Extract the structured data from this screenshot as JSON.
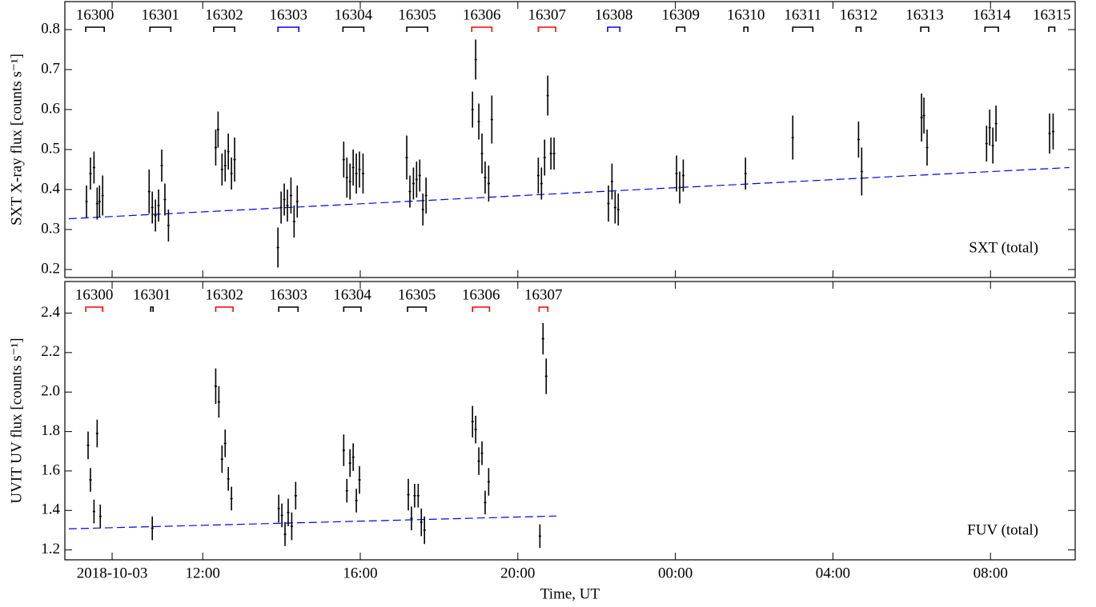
{
  "chart_data": [
    {
      "type": "scatter",
      "ylabel": "SXT X-ray flux [counts s⁻¹]",
      "annotation": "SXT (total)",
      "xlim": [
        8.5,
        34.15
      ],
      "xticks": [
        9.7,
        12,
        16,
        20,
        24,
        28,
        32
      ],
      "ylim": [
        0.18,
        0.87
      ],
      "yticks": [
        0.2,
        0.3,
        0.4,
        0.5,
        0.6,
        0.7,
        0.8
      ],
      "color": "#000000",
      "x": [
        9.05,
        9.15,
        9.24,
        9.32,
        9.38,
        9.46,
        10.64,
        10.72,
        10.8,
        10.88,
        10.96,
        11.04,
        11.13,
        12.33,
        12.39,
        12.49,
        12.57,
        12.65,
        12.73,
        12.81,
        13.91,
        13.99,
        14.07,
        14.15,
        14.24,
        14.32,
        14.4,
        15.58,
        15.66,
        15.74,
        15.82,
        15.9,
        15.98,
        16.07,
        17.18,
        17.26,
        17.35,
        17.43,
        17.51,
        17.59,
        17.67,
        18.85,
        18.93,
        19.01,
        19.09,
        19.17,
        19.26,
        19.34,
        20.52,
        20.6,
        20.68,
        20.76,
        20.84,
        20.92,
        22.3,
        22.39,
        22.47,
        22.55,
        24.03,
        24.11,
        24.2,
        25.78,
        26.98,
        28.65,
        28.73,
        30.25,
        30.31,
        30.39,
        31.9,
        31.98,
        32.06,
        32.14,
        33.5,
        33.59
      ],
      "values": [
        0.37,
        0.44,
        0.455,
        0.365,
        0.37,
        0.385,
        0.395,
        0.355,
        0.335,
        0.36,
        0.46,
        0.375,
        0.31,
        0.505,
        0.55,
        0.45,
        0.46,
        0.495,
        0.44,
        0.475,
        0.255,
        0.355,
        0.375,
        0.36,
        0.385,
        0.32,
        0.37,
        0.475,
        0.43,
        0.42,
        0.455,
        0.44,
        0.45,
        0.44,
        0.48,
        0.395,
        0.415,
        0.425,
        0.435,
        0.35,
        0.385,
        0.6,
        0.725,
        0.57,
        0.49,
        0.43,
        0.415,
        0.575,
        0.435,
        0.415,
        0.48,
        0.635,
        0.49,
        0.49,
        0.365,
        0.42,
        0.355,
        0.35,
        0.44,
        0.405,
        0.435,
        0.44,
        0.53,
        0.525,
        0.445,
        0.58,
        0.585,
        0.505,
        0.515,
        0.555,
        0.51,
        0.565,
        0.54,
        0.545
      ],
      "errors": [
        0.04,
        0.04,
        0.04,
        0.04,
        0.04,
        0.05,
        0.055,
        0.04,
        0.04,
        0.04,
        0.04,
        0.04,
        0.04,
        0.045,
        0.045,
        0.04,
        0.04,
        0.045,
        0.04,
        0.055,
        0.05,
        0.04,
        0.04,
        0.04,
        0.045,
        0.04,
        0.04,
        0.045,
        0.05,
        0.045,
        0.045,
        0.05,
        0.045,
        0.05,
        0.055,
        0.04,
        0.04,
        0.045,
        0.04,
        0.04,
        0.045,
        0.045,
        0.05,
        0.045,
        0.05,
        0.04,
        0.045,
        0.06,
        0.045,
        0.04,
        0.045,
        0.05,
        0.04,
        0.04,
        0.045,
        0.045,
        0.04,
        0.04,
        0.045,
        0.04,
        0.04,
        0.04,
        0.055,
        0.045,
        0.06,
        0.06,
        0.045,
        0.045,
        0.045,
        0.045,
        0.045,
        0.045,
        0.05,
        0.045
      ],
      "trend": {
        "color": "#0000ff",
        "x": [
          8.6,
          34.0
        ],
        "values": [
          0.327,
          0.455
        ]
      },
      "segments": [
        {
          "label": "16300",
          "start": 9.03,
          "end": 9.5,
          "color": "#000000"
        },
        {
          "label": "16301",
          "start": 10.66,
          "end": 11.19,
          "color": "#000000"
        },
        {
          "label": "16302",
          "start": 12.28,
          "end": 12.81,
          "color": "#000000"
        },
        {
          "label": "16303",
          "start": 13.91,
          "end": 14.44,
          "color": "#0000ff"
        },
        {
          "label": "16304",
          "start": 15.56,
          "end": 16.09,
          "color": "#000000"
        },
        {
          "label": "16305",
          "start": 17.18,
          "end": 17.71,
          "color": "#000000"
        },
        {
          "label": "16306",
          "start": 18.83,
          "end": 19.34,
          "color": "#ff0000"
        },
        {
          "label": "16307",
          "start": 20.52,
          "end": 20.96,
          "color": "#ff0000"
        },
        {
          "label": "16308",
          "start": 22.28,
          "end": 22.59,
          "color": "#0000ff"
        },
        {
          "label": "16309",
          "start": 24.03,
          "end": 24.24,
          "color": "#000000"
        },
        {
          "label": "16310",
          "start": 25.74,
          "end": 25.84,
          "color": "#000000"
        },
        {
          "label": "16311",
          "start": 26.98,
          "end": 27.49,
          "color": "#000000"
        },
        {
          "label": "16312",
          "start": 28.59,
          "end": 28.71,
          "color": "#000000"
        },
        {
          "label": "16313",
          "start": 30.23,
          "end": 30.43,
          "color": "#000000"
        },
        {
          "label": "16314",
          "start": 31.86,
          "end": 32.2,
          "color": "#000000"
        },
        {
          "label": "16315",
          "start": 33.48,
          "end": 33.63,
          "color": "#000000"
        }
      ]
    },
    {
      "type": "scatter",
      "ylabel": "UVIT UV flux [counts s⁻¹]",
      "xlabel": "Time, UT",
      "annotation": "FUV (total)",
      "xlim": [
        8.5,
        34.15
      ],
      "xticks": [
        {
          "value": 9.7,
          "label": "2018-10-03"
        },
        {
          "value": 12,
          "label": "12:00"
        },
        {
          "value": 16,
          "label": "16:00"
        },
        {
          "value": 20,
          "label": "20:00"
        },
        {
          "value": 24,
          "label": "00:00"
        },
        {
          "value": 28,
          "label": "04:00"
        },
        {
          "value": 32,
          "label": "08:00"
        }
      ],
      "ylim": [
        1.15,
        2.56
      ],
      "yticks": [
        1.2,
        1.4,
        1.6,
        1.8,
        {
          "value": 2,
          "label": "2.0"
        },
        2.2,
        2.4
      ],
      "color": "#000000",
      "x": [
        9.09,
        9.15,
        9.24,
        9.32,
        9.4,
        10.72,
        12.33,
        12.41,
        12.49,
        12.57,
        12.65,
        12.73,
        13.93,
        14.01,
        14.09,
        14.17,
        14.26,
        14.36,
        15.58,
        15.66,
        15.74,
        15.82,
        15.9,
        15.98,
        17.22,
        17.3,
        17.38,
        17.47,
        17.55,
        17.63,
        18.85,
        18.93,
        19.01,
        19.09,
        19.17,
        19.26,
        20.56,
        20.64,
        20.72
      ],
      "values": [
        1.73,
        1.555,
        1.395,
        1.79,
        1.37,
        1.31,
        2.03,
        1.95,
        1.66,
        1.74,
        1.56,
        1.46,
        1.41,
        1.375,
        1.28,
        1.39,
        1.32,
        1.475,
        1.705,
        1.5,
        1.64,
        1.67,
        1.45,
        1.555,
        1.48,
        1.36,
        1.475,
        1.475,
        1.34,
        1.3,
        1.85,
        1.81,
        1.65,
        1.69,
        1.44,
        1.545,
        1.27,
        2.27,
        2.08
      ],
      "errors": [
        0.07,
        0.06,
        0.06,
        0.07,
        0.06,
        0.06,
        0.09,
        0.08,
        0.07,
        0.07,
        0.06,
        0.06,
        0.07,
        0.06,
        0.06,
        0.07,
        0.07,
        0.07,
        0.08,
        0.06,
        0.07,
        0.07,
        0.06,
        0.07,
        0.08,
        0.06,
        0.06,
        0.06,
        0.07,
        0.07,
        0.08,
        0.07,
        0.07,
        0.06,
        0.06,
        0.07,
        0.06,
        0.08,
        0.09
      ],
      "trend": {
        "color": "#0000ff",
        "x": [
          8.6,
          20.98
        ],
        "values": [
          1.307,
          1.372
        ]
      },
      "segments": [
        {
          "label": "16300",
          "start": 9.03,
          "end": 9.46,
          "color": "#ff0000"
        },
        {
          "label": "16301",
          "start": 10.68,
          "end": 10.74,
          "color": "#000000"
        },
        {
          "label": "16302",
          "start": 12.33,
          "end": 12.77,
          "color": "#ff0000"
        },
        {
          "label": "16303",
          "start": 13.93,
          "end": 14.42,
          "color": "#000000"
        },
        {
          "label": "16304",
          "start": 15.58,
          "end": 16.02,
          "color": "#000000"
        },
        {
          "label": "16305",
          "start": 17.2,
          "end": 17.67,
          "color": "#000000"
        },
        {
          "label": "16306",
          "start": 18.85,
          "end": 19.28,
          "color": "#ff0000"
        },
        {
          "label": "16307",
          "start": 20.54,
          "end": 20.76,
          "color": "#ff0000"
        }
      ]
    }
  ]
}
